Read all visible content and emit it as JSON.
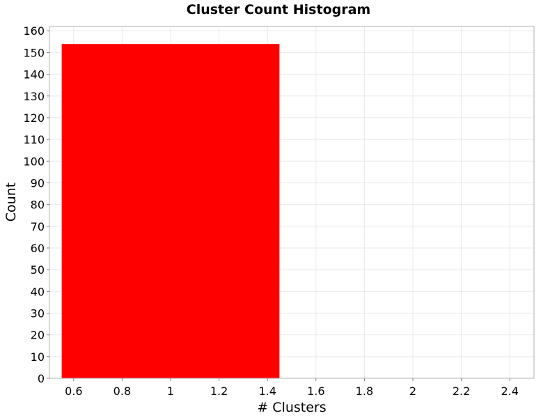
{
  "chart_data": {
    "type": "bar",
    "title": "Cluster Count Histogram",
    "xlabel": "# Clusters",
    "ylabel": "Count",
    "bins": [
      {
        "x0": 0.55,
        "x1": 1.45,
        "value": 154
      }
    ],
    "xlim": [
      0.5,
      2.5
    ],
    "ylim": [
      0,
      162
    ],
    "xticks": [
      "0.6",
      "0.8",
      "1",
      "1.2",
      "1.4",
      "1.6",
      "1.8",
      "2",
      "2.2",
      "2.4"
    ],
    "yticks": [
      "0",
      "10",
      "20",
      "30",
      "40",
      "50",
      "60",
      "70",
      "80",
      "90",
      "100",
      "110",
      "120",
      "130",
      "140",
      "150",
      "160"
    ],
    "grid": true,
    "bar_color": "#ff0000"
  }
}
